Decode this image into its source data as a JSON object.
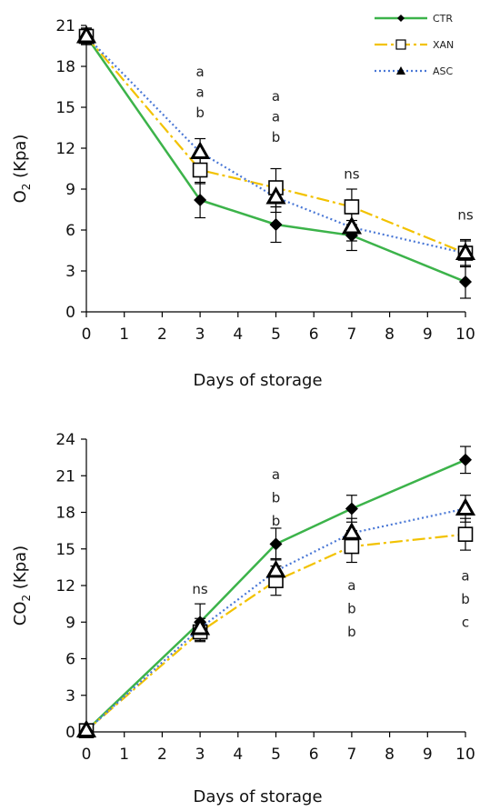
{
  "colors": {
    "CTR": "#3cb34a",
    "XAN": "#f2c200",
    "ASC": "#4a78d6",
    "axis": "#000000"
  },
  "chart_data": [
    {
      "type": "line",
      "xlabel": "Days of storage",
      "ylabel_main": "O",
      "ylabel_sub": "2",
      "ylabel_unit": " (Kpa)",
      "xlim": [
        0,
        10
      ],
      "ylim": [
        0,
        21
      ],
      "x_ticks": [
        0,
        1,
        2,
        3,
        4,
        5,
        6,
        7,
        8,
        9,
        10
      ],
      "y_ticks": [
        0,
        3,
        6,
        9,
        12,
        15,
        18,
        21
      ],
      "grid": false,
      "legend_position": "top-right",
      "legend": [
        "CTR",
        "XAN",
        "ASC"
      ],
      "series": [
        {
          "name": "CTR",
          "x": [
            0,
            3,
            5,
            7,
            10
          ],
          "values": [
            20.2,
            8.2,
            6.4,
            5.6,
            2.2
          ],
          "err": [
            0.6,
            1.3,
            1.3,
            1.1,
            1.2
          ]
        },
        {
          "name": "XAN",
          "x": [
            0,
            3,
            5,
            7,
            10
          ],
          "values": [
            20.2,
            10.4,
            9.1,
            7.7,
            4.3
          ],
          "err": [
            0.6,
            1.0,
            1.4,
            1.3,
            1.0
          ]
        },
        {
          "name": "ASC",
          "x": [
            0,
            3,
            5,
            7,
            10
          ],
          "values": [
            20.2,
            11.7,
            8.4,
            6.2,
            4.3
          ],
          "err": [
            0.6,
            1.0,
            1.1,
            1.0,
            0.9
          ]
        }
      ],
      "annotations": [
        {
          "x": 3,
          "labels": [
            "a",
            "a",
            "b"
          ],
          "ystart": 17.6,
          "ystep": 1.5
        },
        {
          "x": 5,
          "labels": [
            "a",
            "a",
            "b"
          ],
          "ystart": 15.8,
          "ystep": 1.5
        },
        {
          "x": 7,
          "labels": [
            "ns"
          ],
          "ystart": 10.1,
          "ystep": 1.5
        },
        {
          "x": 10,
          "labels": [
            "ns"
          ],
          "ystart": 7.1,
          "ystep": 1.5
        }
      ]
    },
    {
      "type": "line",
      "xlabel": "Days of storage",
      "ylabel_main": "CO",
      "ylabel_sub": "2",
      "ylabel_unit": " (Kpa)",
      "xlim": [
        0,
        10
      ],
      "ylim": [
        0,
        24
      ],
      "x_ticks": [
        0,
        1,
        2,
        3,
        4,
        5,
        6,
        7,
        8,
        9,
        10
      ],
      "y_ticks": [
        0,
        3,
        6,
        9,
        12,
        15,
        18,
        21,
        24
      ],
      "grid": false,
      "legend": [],
      "series": [
        {
          "name": "CTR",
          "x": [
            0,
            3,
            5,
            7,
            10
          ],
          "values": [
            0.1,
            9.0,
            15.4,
            18.3,
            22.3
          ],
          "err": [
            0.2,
            1.5,
            1.3,
            1.1,
            1.1
          ]
        },
        {
          "name": "XAN",
          "x": [
            0,
            3,
            5,
            7,
            10
          ],
          "values": [
            0.1,
            8.2,
            12.4,
            15.2,
            16.2
          ],
          "err": [
            0.2,
            0.8,
            1.2,
            1.3,
            1.3
          ]
        },
        {
          "name": "ASC",
          "x": [
            0,
            3,
            5,
            7,
            10
          ],
          "values": [
            0.1,
            8.5,
            13.2,
            16.3,
            18.3
          ],
          "err": [
            0.2,
            0.8,
            1.0,
            1.2,
            1.1
          ]
        }
      ],
      "annotations": [
        {
          "x": 3,
          "labels": [
            "ns"
          ],
          "ystart": 11.7,
          "ystep": 1.9
        },
        {
          "x": 5,
          "labels": [
            "a",
            "b",
            "b"
          ],
          "ystart": 21.1,
          "ystep": 1.9
        },
        {
          "x": 7,
          "labels": [
            "a",
            "b",
            "b"
          ],
          "ystart": 12.0,
          "ystep": 1.9
        },
        {
          "x": 10,
          "labels": [
            "a",
            "b",
            "c"
          ],
          "ystart": 12.8,
          "ystep": 1.9
        }
      ]
    }
  ]
}
